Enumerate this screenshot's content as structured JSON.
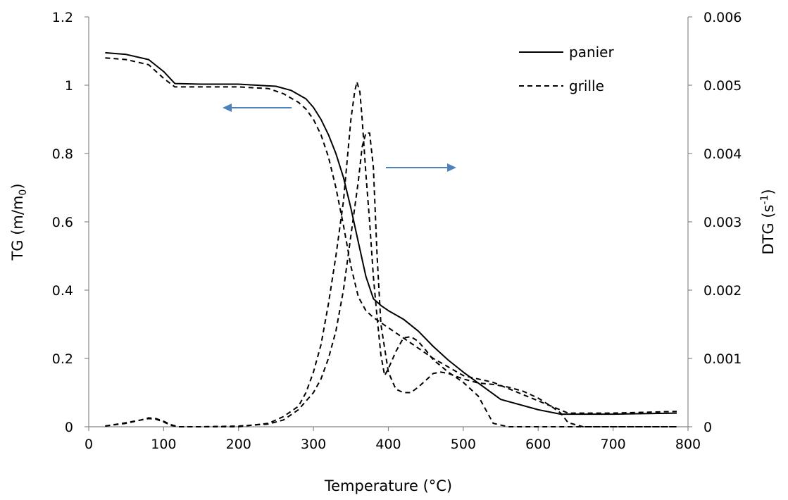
{
  "chart_data": {
    "type": "line",
    "xlabel": "Temperature (°C)",
    "ylabel_left": {
      "main": "TG (m/m",
      "sub": "0",
      "tail": ")"
    },
    "ylabel_right": {
      "main": "DTG (s",
      "sup": "-1",
      "tail": ")"
    },
    "xlim": [
      0,
      800
    ],
    "ylim_left": [
      0,
      1.2
    ],
    "ylim_right": [
      0,
      0.006
    ],
    "x_ticks": [
      "0",
      "100",
      "200",
      "300",
      "400",
      "500",
      "600",
      "700",
      "800"
    ],
    "y_left_ticks": [
      "0",
      "0.2",
      "0.4",
      "0.6",
      "0.8",
      "1",
      "1.2"
    ],
    "y_right_ticks": [
      "0",
      "0.001",
      "0.002",
      "0.003",
      "0.004",
      "0.005",
      "0.006"
    ],
    "grid": false,
    "legend_position": "top-right",
    "legend": [
      {
        "label": "panier",
        "style": "solid"
      },
      {
        "label": "grille",
        "style": "dashed"
      }
    ],
    "arrows": [
      {
        "direction": "left",
        "axis": "left"
      },
      {
        "direction": "right",
        "axis": "right"
      }
    ],
    "arrow_color": "#4F81BD",
    "line_color": "#000000",
    "series": [
      {
        "legend_ref": "panier",
        "axis": "left",
        "kind": "TG",
        "style": "solid",
        "x": [
          22,
          50,
          80,
          100,
          115,
          150,
          200,
          250,
          270,
          290,
          300,
          310,
          320,
          330,
          340,
          350,
          360,
          370,
          380,
          390,
          400,
          420,
          440,
          460,
          480,
          500,
          550,
          600,
          630,
          700,
          785
        ],
        "y": [
          1.095,
          1.09,
          1.075,
          1.04,
          1.005,
          1.003,
          1.003,
          0.997,
          0.985,
          0.96,
          0.935,
          0.9,
          0.855,
          0.8,
          0.73,
          0.64,
          0.54,
          0.44,
          0.375,
          0.355,
          0.34,
          0.315,
          0.28,
          0.235,
          0.195,
          0.16,
          0.08,
          0.05,
          0.037,
          0.037,
          0.04
        ]
      },
      {
        "legend_ref": "grille",
        "axis": "left",
        "kind": "TG",
        "style": "dashed",
        "x": [
          22,
          50,
          80,
          100,
          115,
          150,
          200,
          240,
          260,
          280,
          290,
          300,
          310,
          320,
          330,
          340,
          350,
          360,
          370,
          380,
          390,
          400,
          420,
          440,
          460,
          480,
          500,
          540,
          640,
          700,
          785
        ],
        "y": [
          1.08,
          1.075,
          1.06,
          1.02,
          0.995,
          0.995,
          0.995,
          0.99,
          0.975,
          0.95,
          0.93,
          0.9,
          0.855,
          0.79,
          0.7,
          0.59,
          0.47,
          0.38,
          0.34,
          0.32,
          0.305,
          0.29,
          0.26,
          0.23,
          0.2,
          0.175,
          0.15,
          0.13,
          0.04,
          0.04,
          0.045
        ]
      },
      {
        "legend_ref": "panier",
        "axis": "right",
        "kind": "DTG",
        "style": "dashed",
        "x": [
          22,
          50,
          70,
          80,
          90,
          100,
          110,
          120,
          150,
          200,
          240,
          260,
          280,
          300,
          310,
          320,
          330,
          340,
          350,
          360,
          365,
          370,
          375,
          380,
          385,
          390,
          400,
          410,
          420,
          430,
          440,
          450,
          460,
          470,
          480,
          500,
          520,
          540,
          560,
          580,
          600,
          620,
          630,
          640,
          660,
          700,
          785
        ],
        "y": [
          1e-05,
          6e-05,
          0.0001,
          0.00012,
          0.00011,
          7e-05,
          2e-05,
          0,
          0,
          1e-05,
          4e-05,
          0.0001,
          0.00025,
          0.0005,
          0.0007,
          0.001,
          0.0014,
          0.002,
          0.0028,
          0.0036,
          0.0041,
          0.0043,
          0.0043,
          0.0038,
          0.0025,
          0.0015,
          0.0008,
          0.00055,
          0.0005,
          0.0005,
          0.00058,
          0.00068,
          0.00078,
          0.0008,
          0.00078,
          0.0007,
          0.00064,
          0.00062,
          0.00058,
          0.00052,
          0.00042,
          0.00028,
          0.0002,
          6e-05,
          0,
          0,
          0
        ]
      },
      {
        "legend_ref": "grille",
        "axis": "right",
        "kind": "DTG",
        "style": "dashed",
        "x": [
          22,
          50,
          70,
          80,
          90,
          100,
          110,
          120,
          150,
          200,
          240,
          260,
          280,
          290,
          300,
          310,
          320,
          330,
          340,
          345,
          350,
          355,
          358,
          362,
          365,
          370,
          375,
          380,
          385,
          390,
          395,
          400,
          410,
          420,
          430,
          440,
          450,
          460,
          480,
          500,
          520,
          530,
          540,
          560,
          600,
          700,
          785
        ],
        "y": [
          1e-05,
          5e-05,
          0.0001,
          0.00013,
          0.00012,
          8e-05,
          3e-05,
          0,
          0,
          0,
          5e-05,
          0.00015,
          0.0003,
          0.0005,
          0.0008,
          0.0012,
          0.0018,
          0.0025,
          0.0033,
          0.0039,
          0.0045,
          0.0049,
          0.00505,
          0.0049,
          0.0045,
          0.0037,
          0.003,
          0.0022,
          0.0016,
          0.00105,
          0.00075,
          0.00085,
          0.0011,
          0.0013,
          0.00132,
          0.00125,
          0.00112,
          0.00098,
          0.0008,
          0.00065,
          0.00045,
          0.00025,
          5e-05,
          0,
          0,
          0,
          0
        ]
      }
    ]
  }
}
